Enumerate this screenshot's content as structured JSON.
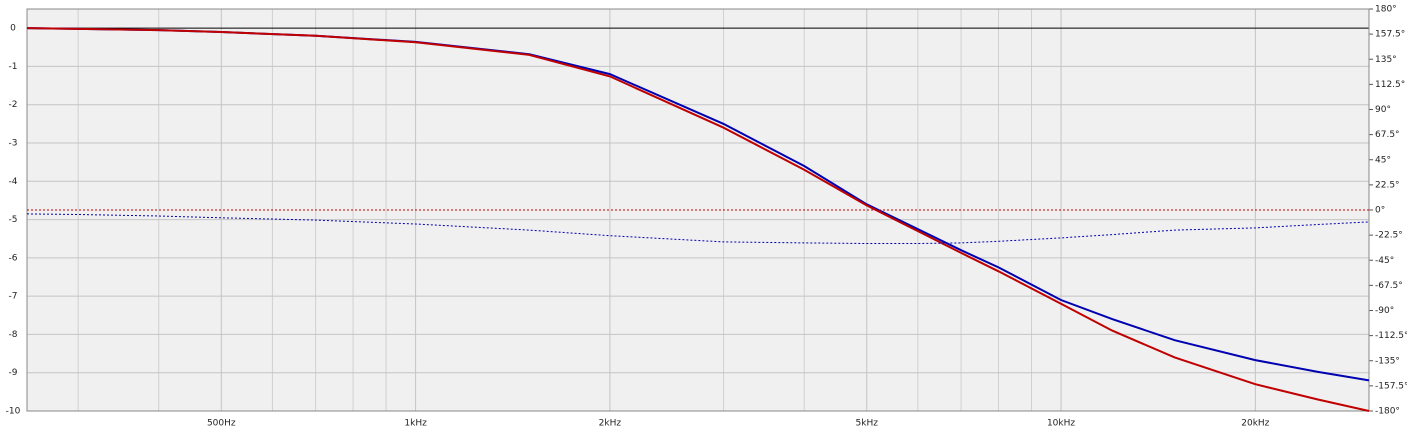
{
  "chart_data": {
    "type": "line",
    "x": [
      250,
      300,
      400,
      500,
      700,
      1000,
      1500,
      2000,
      3000,
      4000,
      5000,
      6000,
      7000,
      8000,
      10000,
      12000,
      15000,
      20000,
      25000,
      30000
    ],
    "series": [
      {
        "color": "#0000b0",
        "values": [
          0,
          -0.02,
          -0.05,
          -0.1,
          -0.2,
          -0.36,
          -0.68,
          -1.2,
          -2.5,
          -3.6,
          -4.6,
          -5.25,
          -5.8,
          -6.25,
          -7.1,
          -7.6,
          -8.15,
          -8.67,
          -8.98,
          -9.2
        ]
      },
      {
        "color": "#c00000",
        "values": [
          0,
          -0.02,
          -0.05,
          -0.1,
          -0.2,
          -0.37,
          -0.7,
          -1.26,
          -2.6,
          -3.7,
          -4.63,
          -5.3,
          -5.87,
          -6.35,
          -7.2,
          -7.9,
          -8.6,
          -9.3,
          -9.7,
          -10
        ]
      },
      {
        "color": "#0000b0",
        "axis": "y2",
        "dashed": true,
        "values": [
          -3.5,
          -4,
          -5.4,
          -7,
          -9,
          -12.5,
          -18,
          -23,
          -28.6,
          -29.5,
          -30,
          -30,
          -29.5,
          -28,
          -25,
          -22,
          -18,
          -16,
          -13,
          -10.7
        ]
      },
      {
        "color": "#c00000",
        "axis": "y2",
        "dashed": true,
        "values": [
          0,
          0,
          0,
          0,
          0,
          0,
          0,
          0,
          0,
          0,
          0,
          0,
          0,
          0,
          0,
          0,
          0,
          0,
          0,
          0
        ]
      }
    ],
    "xscale": "log",
    "xlim": [
      250,
      30000
    ],
    "xticks": [
      {
        "value": 500,
        "label": "500Hz"
      },
      {
        "value": 1000,
        "label": "1kHz"
      },
      {
        "value": 2000,
        "label": "2kHz"
      },
      {
        "value": 5000,
        "label": "5kHz"
      },
      {
        "value": 10000,
        "label": "10kHz"
      },
      {
        "value": 20000,
        "label": "20kHz"
      }
    ],
    "xminor": [
      300,
      400,
      600,
      700,
      800,
      900,
      3000,
      4000,
      6000,
      7000,
      8000,
      9000,
      30000
    ],
    "ylim": [
      -10,
      0.5
    ],
    "yticks": [
      0,
      -1,
      -2,
      -3,
      -4,
      -5,
      -6,
      -7,
      -8,
      -9,
      -10
    ],
    "y2lim": [
      -180,
      180
    ],
    "y2ticks": [
      {
        "value": 180,
        "label": "180°"
      },
      {
        "value": 157.5,
        "label": "157.5°"
      },
      {
        "value": 135,
        "label": "135°"
      },
      {
        "value": 112.5,
        "label": "112.5°"
      },
      {
        "value": 90,
        "label": "90°"
      },
      {
        "value": 67.5,
        "label": "67.5°"
      },
      {
        "value": 45,
        "label": "45°"
      },
      {
        "value": 22.5,
        "label": "22.5°"
      },
      {
        "value": 0,
        "label": "0°"
      },
      {
        "value": -22.5,
        "label": "-22.5°"
      },
      {
        "value": -45,
        "label": "-45°"
      },
      {
        "value": -67.5,
        "label": "-67.5°"
      },
      {
        "value": -90,
        "label": "-90°"
      },
      {
        "value": -112.5,
        "label": "-112.5°"
      },
      {
        "value": -135,
        "label": "-135°"
      },
      {
        "value": -157.5,
        "label": "-157.5°"
      },
      {
        "value": -180,
        "label": "-180°"
      }
    ],
    "grid": true
  }
}
